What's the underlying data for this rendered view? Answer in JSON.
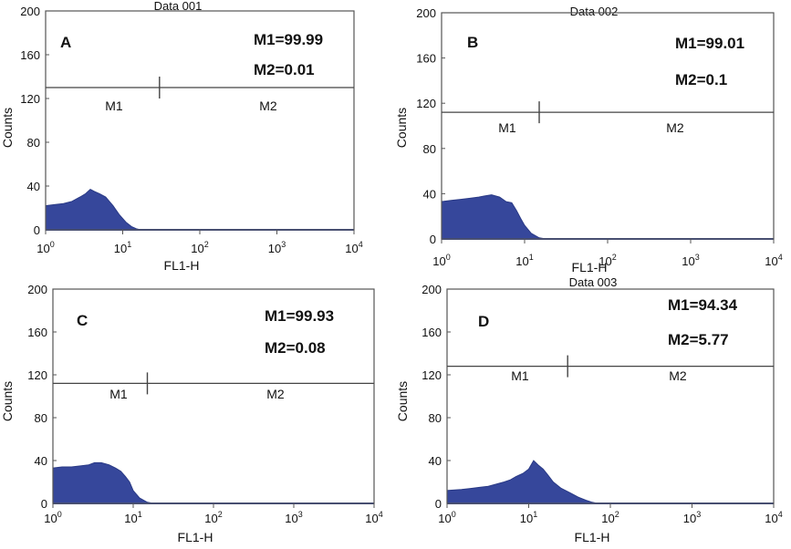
{
  "colors": {
    "fill": "#36479b",
    "stroke": "#2a3a86",
    "frame": "#555555",
    "marker": "#444444",
    "text": "#111111"
  },
  "chart_data": [
    {
      "type": "area",
      "panel_label": "A",
      "title": "Data 001",
      "xlabel": "FL1-H",
      "ylabel": "Counts",
      "x_scale": "log",
      "xlim": [
        1,
        10000
      ],
      "ylim": [
        0,
        200
      ],
      "x_ticks": [
        {
          "base": "10",
          "exp": "0"
        },
        {
          "base": "10",
          "exp": "1"
        },
        {
          "base": "10",
          "exp": "2"
        },
        {
          "base": "10",
          "exp": "3"
        },
        {
          "base": "10",
          "exp": "4"
        }
      ],
      "y_ticks": [
        "0",
        "40",
        "80",
        "120",
        "160",
        "200"
      ],
      "annotations": [
        "M1=99.99",
        "M2=0.01"
      ],
      "gate": {
        "level": 130,
        "divider": 30
      },
      "markers": [
        "M1",
        "M2"
      ],
      "series": [
        {
          "name": "histogram",
          "x": [
            1,
            1.3,
            1.7,
            2.2,
            2.8,
            3.3,
            3.8,
            4.3,
            5,
            6,
            7.5,
            9,
            11,
            13,
            15,
            17,
            20
          ],
          "values": [
            22,
            23,
            24,
            26,
            30,
            33,
            37,
            35,
            33,
            30,
            22,
            14,
            7,
            3,
            1,
            0,
            0
          ]
        }
      ]
    },
    {
      "type": "area",
      "panel_label": "B",
      "title": "Data 002",
      "xlabel": "FL1-H",
      "ylabel": "Counts",
      "x_scale": "log",
      "xlim": [
        1,
        10000
      ],
      "ylim": [
        0,
        200
      ],
      "x_ticks": [
        {
          "base": "10",
          "exp": "0"
        },
        {
          "base": "10",
          "exp": "1"
        },
        {
          "base": "10",
          "exp": "2"
        },
        {
          "base": "10",
          "exp": "3"
        },
        {
          "base": "10",
          "exp": "4"
        }
      ],
      "y_ticks": [
        "0",
        "40",
        "80",
        "120",
        "160",
        "200"
      ],
      "annotations": [
        "M1=99.01",
        "M2=0.1"
      ],
      "gate": {
        "level": 112,
        "divider": 15
      },
      "markers": [
        "M1",
        "M2"
      ],
      "series": [
        {
          "name": "histogram",
          "x": [
            1,
            1.3,
            1.7,
            2.2,
            2.8,
            3.3,
            4,
            5,
            6,
            7,
            8,
            9,
            10,
            12,
            15,
            18,
            22
          ],
          "values": [
            33,
            34,
            35,
            36,
            37,
            38,
            39,
            37,
            33,
            32,
            25,
            18,
            12,
            5,
            1,
            0,
            0
          ]
        }
      ]
    },
    {
      "type": "area",
      "panel_label": "C",
      "title": "",
      "xlabel": "FL1-H",
      "ylabel": "Counts",
      "x_scale": "log",
      "xlim": [
        1,
        10000
      ],
      "ylim": [
        0,
        200
      ],
      "x_ticks": [
        {
          "base": "10",
          "exp": "0"
        },
        {
          "base": "10",
          "exp": "1"
        },
        {
          "base": "10",
          "exp": "2"
        },
        {
          "base": "10",
          "exp": "3"
        },
        {
          "base": "10",
          "exp": "4"
        }
      ],
      "y_ticks": [
        "0",
        "40",
        "80",
        "120",
        "160",
        "200"
      ],
      "annotations": [
        "M1=99.93",
        "M2=0.08"
      ],
      "gate": {
        "level": 112,
        "divider": 15
      },
      "markers": [
        "M1",
        "M2"
      ],
      "series": [
        {
          "name": "histogram",
          "x": [
            1,
            1.3,
            1.7,
            2.2,
            2.8,
            3.3,
            4,
            5,
            6,
            7,
            8,
            9,
            10,
            12,
            15,
            18,
            22
          ],
          "values": [
            33,
            34,
            34,
            35,
            36,
            38,
            38,
            36,
            33,
            30,
            25,
            20,
            12,
            5,
            1,
            0,
            0
          ]
        }
      ]
    },
    {
      "type": "area",
      "panel_label": "D",
      "title": "Data 003",
      "xlabel": "FL1-H",
      "ylabel": "Counts",
      "x_scale": "log",
      "xlim": [
        1,
        10000
      ],
      "ylim": [
        0,
        200
      ],
      "x_ticks": [
        {
          "base": "10",
          "exp": "0"
        },
        {
          "base": "10",
          "exp": "1"
        },
        {
          "base": "10",
          "exp": "2"
        },
        {
          "base": "10",
          "exp": "3"
        },
        {
          "base": "10",
          "exp": "4"
        }
      ],
      "y_ticks": [
        "0",
        "40",
        "80",
        "120",
        "160",
        "200"
      ],
      "annotations": [
        "M1=94.34",
        "M2=5.77"
      ],
      "gate": {
        "level": 128,
        "divider": 30
      },
      "markers": [
        "M1",
        "M2"
      ],
      "series": [
        {
          "name": "histogram",
          "x": [
            1,
            1.5,
            2,
            2.5,
            3.2,
            4,
            5,
            6,
            7,
            8.5,
            10,
            11.5,
            13,
            15,
            17,
            20,
            25,
            32,
            40,
            50,
            60,
            70,
            80
          ],
          "values": [
            12,
            13,
            14,
            15,
            16,
            18,
            20,
            22,
            25,
            28,
            32,
            40,
            36,
            32,
            27,
            20,
            14,
            10,
            6,
            3,
            1,
            0,
            0
          ]
        }
      ]
    }
  ]
}
